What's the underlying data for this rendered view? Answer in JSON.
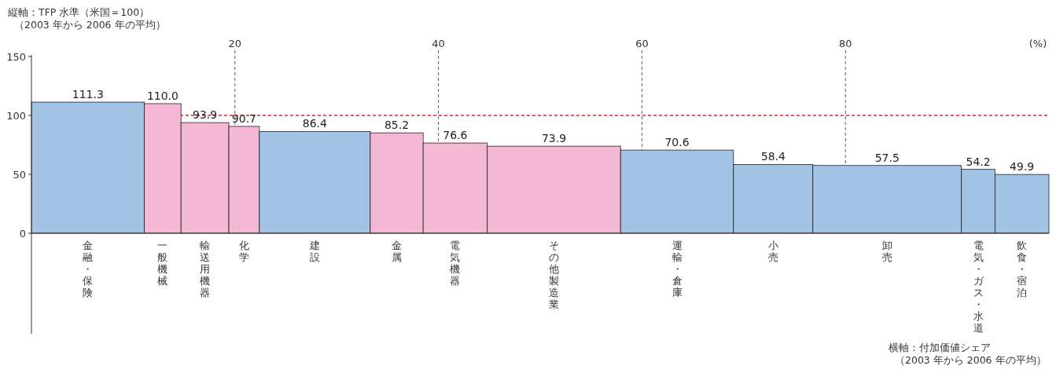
{
  "chart_data": {
    "type": "bar",
    "ylabel": "縦軸：TFP 水準（米国＝100）",
    "x2label": "(%)",
    "annotations": [
      "（2003 年から 2006 年の平均）",
      "横軸：付加価値シェア",
      "（2003 年から 2006 年の平均）"
    ],
    "categories": [
      "金融・保険",
      "一般機械",
      "輸送用機器",
      "化学",
      "建設",
      "金属",
      "電気機器",
      "その他製造業",
      "運輸・倉庫",
      "小売",
      "卸売",
      "電気・ガス・水道",
      "飲食・宿泊"
    ],
    "series": [
      {
        "axis": "x2",
        "x": [
          5.55,
          12.9,
          17.05,
          20.9,
          27.85,
          35.9,
          41.65,
          51.35,
          63.45,
          72.9,
          84.1,
          93.05,
          97.35
        ],
        "values": [
          111.3,
          110.0,
          93.9,
          90.7,
          86.4,
          85.2,
          76.6,
          73.9,
          70.6,
          58.4,
          57.5,
          54.2,
          49.9
        ],
        "value_labels": [
          "111.3",
          "110.0",
          "93.9",
          "90.7",
          "86.4",
          "85.2",
          "76.6",
          "73.9",
          "70.6",
          "58.4",
          "57.5",
          "54.2",
          "49.9"
        ],
        "colors": [
          "#a3c3e5",
          "#f4b8d4",
          "#f4b8d4",
          "#f4b8d4",
          "#a3c3e5",
          "#f4b8d4",
          "#f4b8d4",
          "#f4b8d4",
          "#a3c3e5",
          "#a3c3e5",
          "#a3c3e5",
          "#a3c3e5",
          "#a3c3e5"
        ]
      }
    ],
    "x2lim": [
      0,
      100
    ],
    "x2ticks": [
      20,
      40,
      60,
      80
    ],
    "ylim": [
      0,
      150
    ],
    "yticks": [
      0,
      50,
      100,
      150
    ],
    "ref_lines": [
      {
        "axis": "y",
        "value": 100,
        "color": "#e8202a",
        "line_style": "dashed"
      },
      {
        "axis": "x2",
        "value": 20,
        "color": "#333333",
        "line_style": "dashed"
      },
      {
        "axis": "x2",
        "value": 40,
        "color": "#333333",
        "line_style": "dashed"
      },
      {
        "axis": "x2",
        "value": 60,
        "color": "#333333",
        "line_style": "dashed"
      },
      {
        "axis": "x2",
        "value": 80,
        "color": "#333333",
        "line_style": "dashed"
      }
    ]
  }
}
